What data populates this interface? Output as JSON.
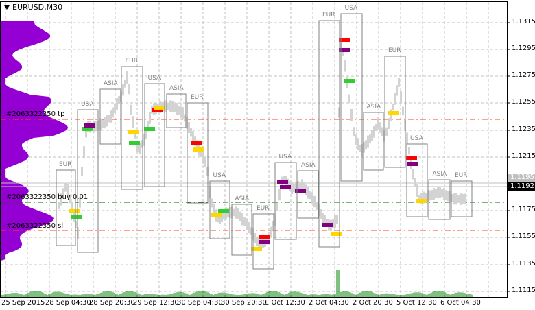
{
  "symbol_title": "EURUSD,M30",
  "price_axis": [
    "1.1315",
    "1.1295",
    "1.1275",
    "1.1255",
    "1.1235",
    "1.1215",
    "1.1175",
    "1.1155",
    "1.1135",
    "1.1115"
  ],
  "price_tags": {
    "bid": "1.1192",
    "ask": "1.1195"
  },
  "time_axis": [
    "25 Sep 2015",
    "28 Sep 04:30",
    "28 Sep 20:30",
    "29 Sep 12:30",
    "30 Sep 04:30",
    "30 Sep 20:30",
    "1 Oct 12:30",
    "2 Oct 04:30",
    "2 Oct 20:30",
    "5 Oct 12:30",
    "6 Oct 04:30"
  ],
  "order_lines": {
    "tp": "#2063322350 tp",
    "open": "#2063322350 buy 0.01",
    "sl": "#2063322350 sl"
  },
  "sessions": [
    "EUR",
    "USA",
    "ASIA",
    "EUR",
    "USA",
    "ASIA",
    "EUR",
    "USA",
    "ASIA",
    "EUR",
    "USA",
    "ASIA",
    "EUR",
    "USA",
    "ASIA",
    "EUR",
    "USA",
    "ASIA",
    "EUR"
  ],
  "colors": {
    "tp": "#ff4500",
    "sl": "#ff4500",
    "open": "#006400",
    "profile": "#9400d3",
    "volume": "#008000",
    "bars": "#d3d3d3"
  }
}
